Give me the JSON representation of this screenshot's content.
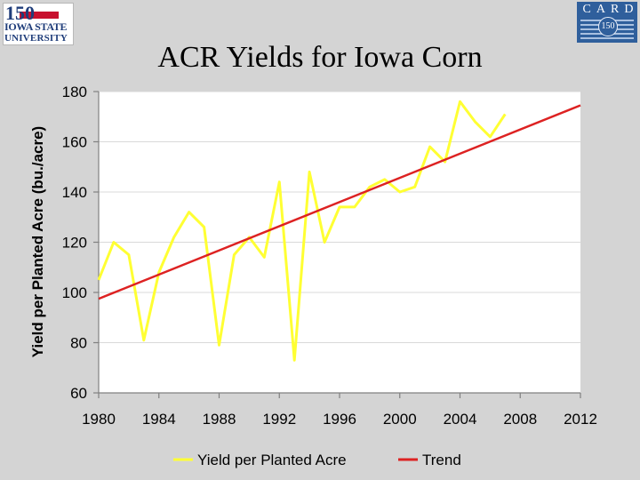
{
  "slide": {
    "title": "ACR Yields for Iowa Corn",
    "logo_left": {
      "number": "150",
      "line1": "IOWA STATE",
      "line2": "UNIVERSITY"
    },
    "logo_right": {
      "text": "CARD",
      "seal": "150"
    }
  },
  "chart_data": {
    "type": "line",
    "title": "",
    "xlabel": "",
    "ylabel": "Yield per  Planted Acre (bu./acre)",
    "xlim": [
      1980,
      2012
    ],
    "ylim": [
      60,
      180
    ],
    "x_ticks": [
      "1980",
      "1984",
      "1988",
      "1992",
      "1996",
      "2000",
      "2004",
      "2008",
      "2012"
    ],
    "y_ticks": [
      "60",
      "80",
      "100",
      "120",
      "140",
      "160",
      "180"
    ],
    "grid": true,
    "legend_position": "bottom",
    "series": [
      {
        "name": "Yield per Planted Acre",
        "color": "#ffff33",
        "x": [
          1980,
          1981,
          1982,
          1983,
          1984,
          1985,
          1986,
          1987,
          1988,
          1989,
          1990,
          1991,
          1992,
          1993,
          1994,
          1995,
          1996,
          1997,
          1998,
          1999,
          2000,
          2001,
          2002,
          2003,
          2004,
          2005,
          2006,
          2007
        ],
        "values": [
          105,
          120,
          115,
          81,
          108,
          122,
          132,
          126,
          79,
          115,
          122,
          114,
          144,
          73,
          148,
          120,
          134,
          134,
          142,
          145,
          140,
          142,
          158,
          152,
          176,
          168,
          162,
          171
        ]
      },
      {
        "name": "Trend",
        "color": "#dd2222",
        "x": [
          1980,
          2012
        ],
        "values": [
          97.5,
          174.5
        ]
      }
    ]
  }
}
